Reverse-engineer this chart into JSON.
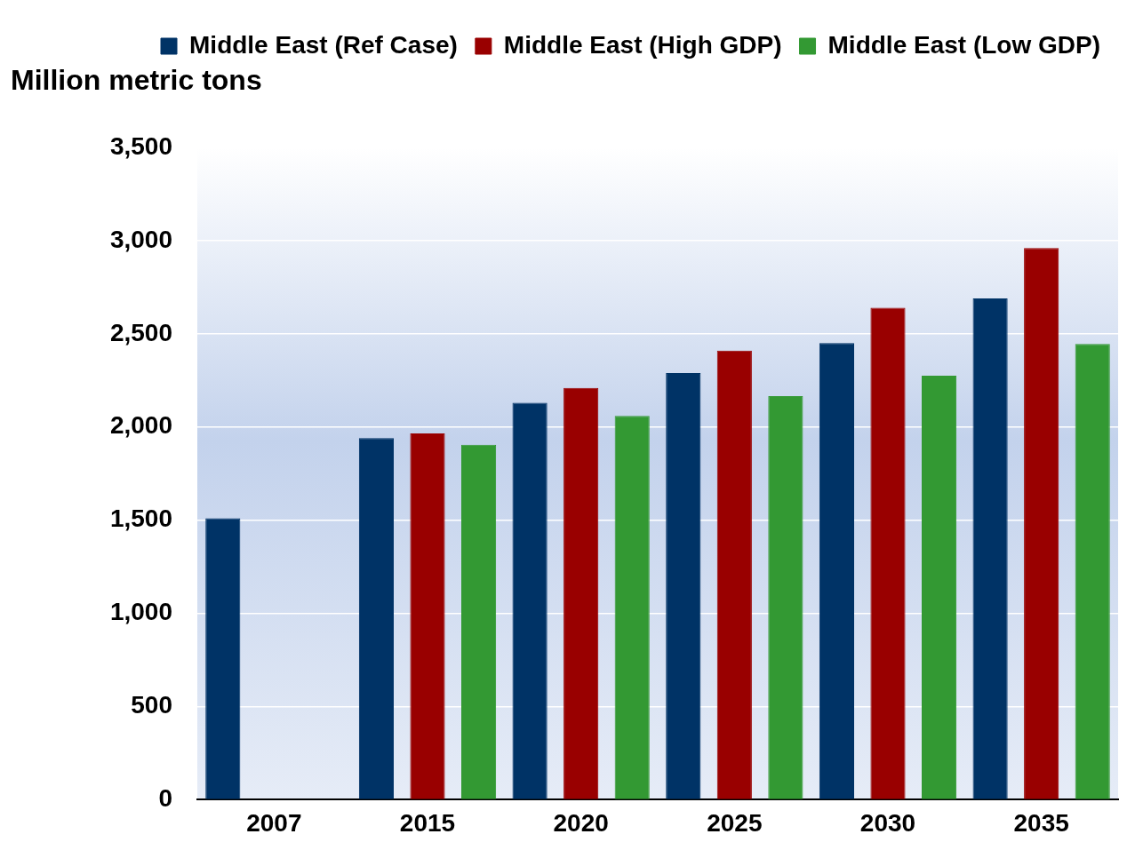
{
  "chart_data": {
    "type": "bar",
    "ylabel": "Million metric tons",
    "categories": [
      "2007",
      "2015",
      "2020",
      "2025",
      "2030",
      "2035"
    ],
    "series": [
      {
        "name": "Middle East (Ref Case)",
        "color": "#003366",
        "values": [
          1510,
          1940,
          2130,
          2290,
          2450,
          2690
        ]
      },
      {
        "name": "Middle East (High GDP)",
        "color": "#990000",
        "values": [
          null,
          1965,
          2210,
          2410,
          2640,
          2960
        ]
      },
      {
        "name": "Middle East (Low GDP)",
        "color": "#339933",
        "values": [
          null,
          1905,
          2060,
          2165,
          2275,
          2445
        ]
      }
    ],
    "ylim": [
      0,
      3500
    ],
    "yticks": [
      0,
      500,
      {
        "value": 1000,
        "label": "1,000"
      },
      {
        "value": 1500,
        "label": "1,500"
      },
      {
        "value": 2000,
        "label": "2,000"
      },
      {
        "value": 2500,
        "label": "2,500"
      },
      {
        "value": 3000,
        "label": "3,000"
      },
      {
        "value": 3500,
        "label": "3,500"
      }
    ],
    "grid": "y",
    "legend": "top right"
  }
}
